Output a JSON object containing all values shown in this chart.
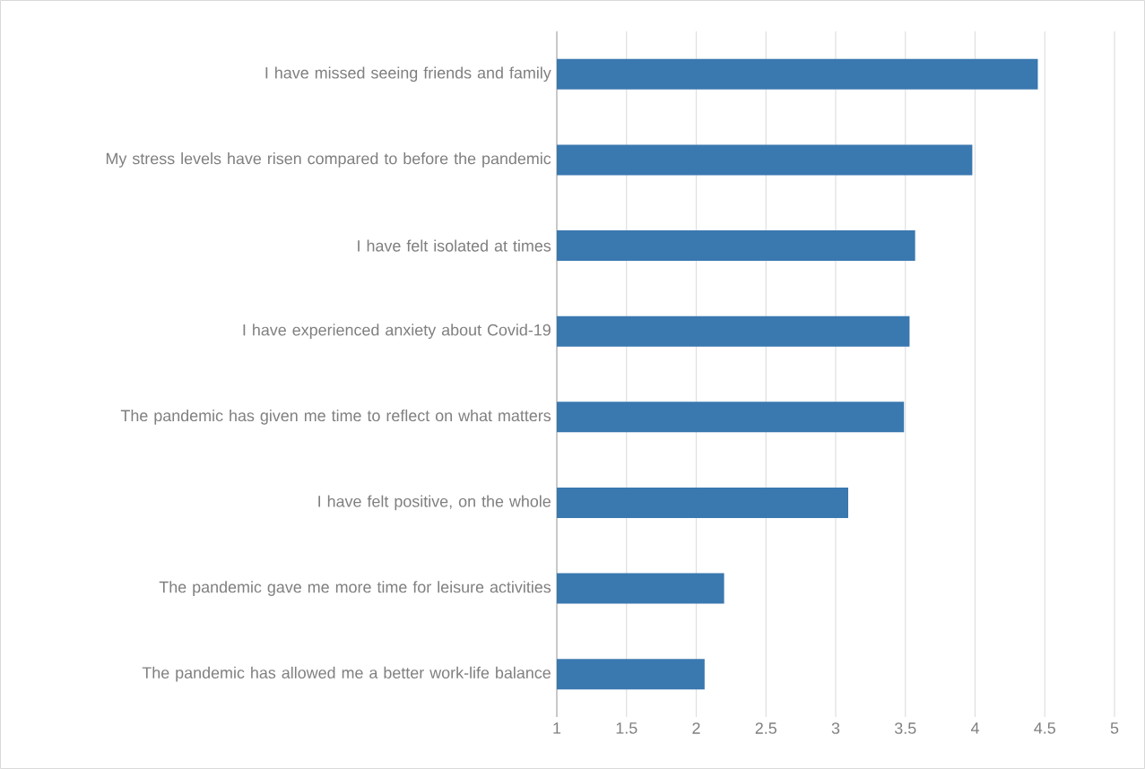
{
  "chart_data": {
    "type": "bar",
    "orientation": "horizontal",
    "categories": [
      "I have missed seeing friends and family",
      "My stress levels have risen compared to before the pandemic",
      "I have felt isolated at times",
      "I have experienced anxiety about Covid-19",
      "The pandemic has given me time to reflect on what matters",
      "I have felt positive, on the whole",
      "The pandemic gave me more time for leisure activities",
      "The pandemic has allowed me a better work-life balance"
    ],
    "values": [
      4.45,
      3.98,
      3.57,
      3.53,
      3.49,
      3.09,
      2.2,
      2.06
    ],
    "color": "#3a78b0",
    "xlim": [
      1,
      5
    ],
    "xticks": [
      1,
      1.5,
      2,
      2.5,
      3,
      3.5,
      4,
      4.5,
      5
    ],
    "grid": "x"
  }
}
